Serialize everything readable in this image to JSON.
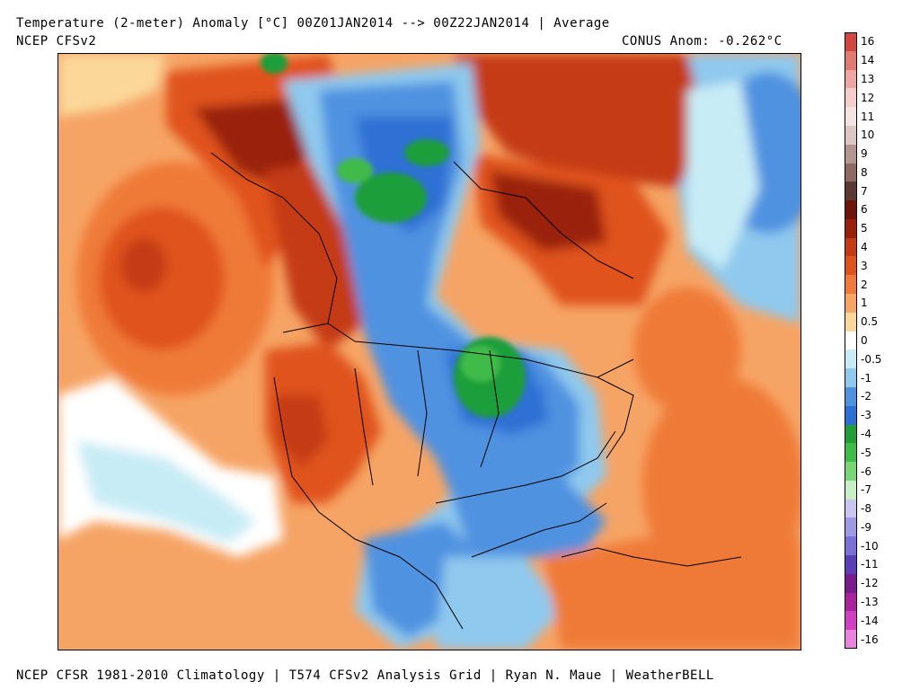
{
  "header": {
    "title": "Temperature (2-meter) Anomaly  [°C] 00Z01JAN2014 --> 00Z22JAN2014 | Average",
    "model": "NCEP CFSv2",
    "conus_anom": "CONUS Anom: -0.262°C"
  },
  "footer": {
    "credits": "NCEP CFSR 1981-2010 Climatology | T574 CFSv2 Analysis Grid | Ryan N. Maue | WeatherBELL"
  },
  "colorbar": {
    "labels": [
      "16",
      "14",
      "13",
      "12",
      "11",
      "10",
      "9",
      "8",
      "7",
      "6",
      "5",
      "4",
      "3",
      "2",
      "1",
      "0.5",
      "0",
      "-0.5",
      "-1",
      "-2",
      "-3",
      "-4",
      "-5",
      "-6",
      "-7",
      "-8",
      "-9",
      "-10",
      "-11",
      "-12",
      "-13",
      "-14",
      "-16"
    ],
    "colors": [
      "#d2473e",
      "#e07a73",
      "#eda6a1",
      "#f5cdc9",
      "#f4e4e1",
      "#ddc7c3",
      "#b49690",
      "#8e6a63",
      "#5c3a33",
      "#6e1408",
      "#9a200c",
      "#c43a12",
      "#e0521c",
      "#ef7a39",
      "#f7a565",
      "#fbd89a",
      "#ffffff",
      "#c8ecf6",
      "#8fc9ee",
      "#4f92e0",
      "#2d6fd4",
      "#1f9e3a",
      "#3fbb48",
      "#78d675",
      "#c8eec5",
      "#c9c6ef",
      "#9f9ae3",
      "#7a70d6",
      "#5a3fb6",
      "#7a1c8c",
      "#a8239c",
      "#d23fc0",
      "#ec82e0"
    ],
    "units": "°C"
  }
}
